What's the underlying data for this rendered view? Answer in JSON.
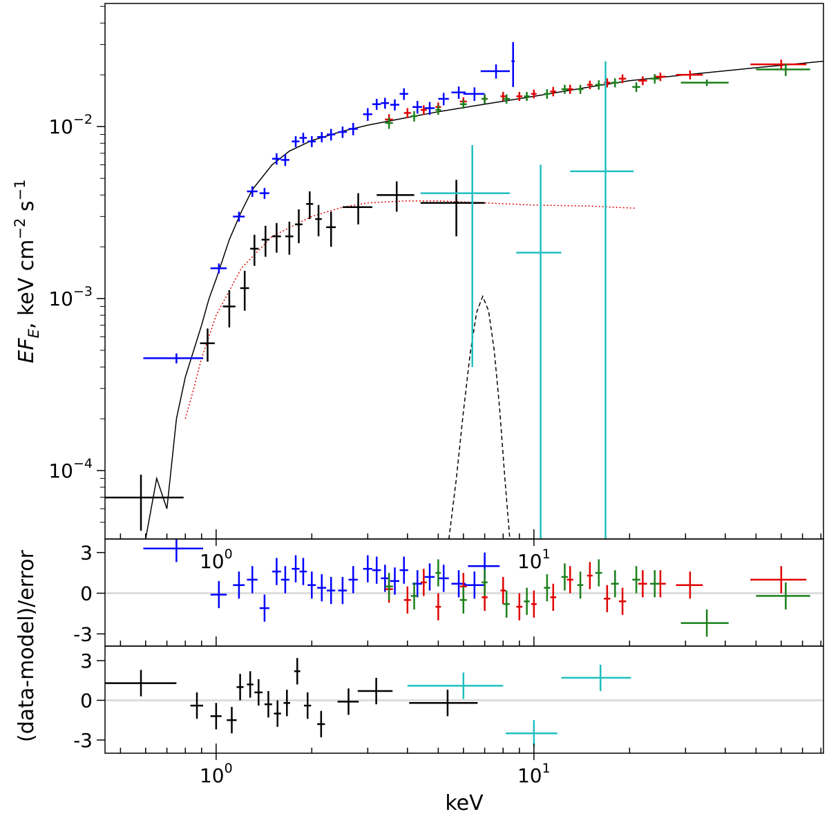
{
  "chart_data": [
    {
      "type": "errorbar",
      "xscale": "log",
      "yscale": "log",
      "xlim": [
        0.447,
        81.5
      ],
      "ylim": [
        4e-05,
        0.052
      ],
      "xticks": [
        {
          "value": 1,
          "label": "10",
          "exp": "0"
        },
        {
          "value": 10,
          "label": "10",
          "exp": "1"
        }
      ],
      "yticks": [
        {
          "value": 0.0001,
          "label": "10",
          "exp": "−4"
        },
        {
          "value": 0.001,
          "label": "10",
          "exp": "−3"
        },
        {
          "value": 0.01,
          "label": "10",
          "exp": "−2"
        }
      ],
      "ylabel": [
        "EF",
        "E",
        ", keV cm",
        "−2",
        " s",
        "−1"
      ],
      "models": [
        {
          "color": "#000000",
          "style": "solid",
          "x": [
            0.6,
            0.65,
            0.7,
            0.75,
            0.8,
            0.85,
            0.9,
            0.95,
            1.0,
            1.1,
            1.2,
            1.3,
            1.5,
            1.7,
            2,
            2.5,
            3,
            4,
            5,
            7,
            10,
            15,
            20,
            30,
            50,
            81.5
          ],
          "values": [
            4e-05,
            9e-05,
            6e-05,
            0.0002,
            0.00035,
            0.0005,
            0.0007,
            0.001,
            0.0013,
            0.0022,
            0.0032,
            0.0043,
            0.006,
            0.0072,
            0.0083,
            0.0094,
            0.0102,
            0.0113,
            0.0122,
            0.0135,
            0.015,
            0.017,
            0.0185,
            0.02,
            0.022,
            0.024
          ]
        },
        {
          "color": "#e00000",
          "style": "dotted",
          "x": [
            0.8,
            0.85,
            0.9,
            1.0,
            1.2,
            1.5,
            2,
            2.5,
            3,
            4,
            5,
            7,
            10,
            15,
            21
          ],
          "values": [
            0.0002,
            0.0003,
            0.00045,
            0.0008,
            0.0015,
            0.0023,
            0.003,
            0.0034,
            0.0036,
            0.0037,
            0.0037,
            0.0036,
            0.0035,
            0.00345,
            0.00335
          ]
        },
        {
          "color": "#000000",
          "style": "dashed",
          "x": [
            5.4,
            5.7,
            6.0,
            6.3,
            6.6,
            6.9,
            7.2,
            7.5,
            7.8,
            8.1,
            8.4
          ],
          "values": [
            4e-05,
            9e-05,
            0.00022,
            0.00048,
            0.00083,
            0.00103,
            0.00085,
            0.0005,
            0.00023,
            9e-05,
            4e-05
          ]
        }
      ],
      "series": [
        {
          "color": "#0000ff",
          "x": [
            0.75,
            1.02,
            1.18,
            1.3,
            1.42,
            1.55,
            1.65,
            1.78,
            1.88,
            2.0,
            2.15,
            2.3,
            2.5,
            2.7,
            3.0,
            3.2,
            3.4,
            3.65,
            3.9,
            4.3,
            4.7,
            5.2,
            5.8,
            6.5,
            7.6,
            8.6
          ],
          "xerr": [
            0.16,
            0.06,
            0.05,
            0.05,
            0.05,
            0.05,
            0.05,
            0.05,
            0.05,
            0.06,
            0.07,
            0.07,
            0.08,
            0.09,
            0.1,
            0.1,
            0.1,
            0.12,
            0.12,
            0.15,
            0.17,
            0.2,
            0.3,
            0.5,
            0.8,
            0.1
          ],
          "values": [
            0.00045,
            0.0015,
            0.003,
            0.0042,
            0.0041,
            0.0065,
            0.0064,
            0.0082,
            0.0086,
            0.0082,
            0.0087,
            0.009,
            0.0093,
            0.0097,
            0.0118,
            0.0135,
            0.0137,
            0.0134,
            0.0155,
            0.013,
            0.0128,
            0.0145,
            0.0158,
            0.0155,
            0.021,
            0.024
          ],
          "yerr": [
            3e-05,
            0.0001,
            0.0002,
            0.0003,
            0.0003,
            0.0005,
            0.0005,
            0.0006,
            0.0006,
            0.0006,
            0.0006,
            0.0007,
            0.0007,
            0.0008,
            0.001,
            0.001,
            0.001,
            0.001,
            0.0012,
            0.0011,
            0.0011,
            0.0012,
            0.0013,
            0.0014,
            0.002,
            0.007
          ]
        },
        {
          "color": "#e00000",
          "x": [
            3.5,
            4,
            4.5,
            5,
            6,
            7,
            8,
            9,
            10,
            11.5,
            13,
            15,
            17,
            19,
            22,
            25,
            31,
            60
          ],
          "xerr": [
            0.1,
            0.1,
            0.1,
            0.1,
            0.15,
            0.15,
            0.15,
            0.2,
            0.2,
            0.25,
            0.3,
            0.3,
            0.4,
            0.5,
            0.7,
            1,
            3,
            12
          ],
          "values": [
            0.011,
            0.012,
            0.0125,
            0.013,
            0.014,
            0.0145,
            0.015,
            0.015,
            0.0155,
            0.016,
            0.0165,
            0.0175,
            0.018,
            0.019,
            0.0185,
            0.0195,
            0.02,
            0.023
          ],
          "yerr": [
            0.0008,
            0.0008,
            0.0008,
            0.0008,
            0.0008,
            0.0008,
            0.0009,
            0.0009,
            0.0009,
            0.001,
            0.001,
            0.001,
            0.0011,
            0.0011,
            0.0011,
            0.0011,
            0.0012,
            0.0015
          ]
        },
        {
          "color": "#1a7f1a",
          "x": [
            3.5,
            4.2,
            5,
            6,
            7,
            8.2,
            9.5,
            11,
            12.5,
            14,
            16,
            18,
            21,
            24,
            35,
            62
          ],
          "xerr": [
            0.1,
            0.1,
            0.1,
            0.15,
            0.15,
            0.2,
            0.2,
            0.25,
            0.3,
            0.3,
            0.4,
            0.5,
            0.6,
            0.8,
            6,
            12
          ],
          "values": [
            0.0105,
            0.0115,
            0.0125,
            0.0135,
            0.0145,
            0.0145,
            0.015,
            0.0155,
            0.0165,
            0.0165,
            0.0175,
            0.018,
            0.017,
            0.019,
            0.018,
            0.0215
          ],
          "yerr": [
            0.0008,
            0.0008,
            0.0008,
            0.0008,
            0.0009,
            0.0009,
            0.0009,
            0.001,
            0.001,
            0.001,
            0.0011,
            0.0011,
            0.0011,
            0.0012,
            0.0008,
            0.0018
          ]
        },
        {
          "color": "#000000",
          "x": [
            0.58,
            0.94,
            1.1,
            1.23,
            1.32,
            1.43,
            1.55,
            1.7,
            1.82,
            1.97,
            2.1,
            2.3,
            2.8,
            3.7,
            5.7
          ],
          "xerr": [
            0.21,
            0.05,
            0.05,
            0.04,
            0.04,
            0.04,
            0.05,
            0.05,
            0.05,
            0.05,
            0.05,
            0.08,
            0.3,
            0.5,
            1.3
          ],
          "values": [
            6.97e-05,
            0.00055,
            0.0009,
            0.00115,
            0.00195,
            0.0022,
            0.0023,
            0.0023,
            0.0027,
            0.00355,
            0.0029,
            0.0026,
            0.0034,
            0.004,
            0.0036
          ],
          "yerr": [
            2.5e-05,
            0.00012,
            0.00022,
            0.0003,
            0.0004,
            0.00045,
            0.00045,
            0.0005,
            0.0006,
            0.00065,
            0.0006,
            0.0006,
            0.0007,
            0.0008,
            0.0013
          ]
        },
        {
          "color": "#1fbfbf",
          "x": [
            6.4,
            10.5,
            16.8
          ],
          "xerr": [
            2.0,
            1.7,
            3.8
          ],
          "values": [
            0.0041,
            0.00185,
            0.0055
          ],
          "yerr": [
            0.0037,
            0.00415,
            0.0185
          ]
        }
      ]
    },
    {
      "type": "errorbar",
      "xscale": "log",
      "yscale": "linear",
      "xlim": [
        0.447,
        81.5
      ],
      "ylim": [
        -3.9,
        4.0
      ],
      "yticks": [
        -3,
        0,
        3
      ],
      "ylabel": "(data-model)/error",
      "series": [
        {
          "color": "#0000ff",
          "x": [
            0.75,
            1.02,
            1.18,
            1.3,
            1.42,
            1.55,
            1.65,
            1.78,
            1.88,
            2.0,
            2.15,
            2.3,
            2.5,
            2.7,
            3.0,
            3.2,
            3.4,
            3.65,
            3.9,
            4.3,
            4.7,
            5.2,
            5.8,
            6.5,
            7.0
          ],
          "xerr": [
            0.16,
            0.06,
            0.05,
            0.05,
            0.05,
            0.05,
            0.05,
            0.05,
            0.05,
            0.06,
            0.07,
            0.07,
            0.08,
            0.09,
            0.1,
            0.1,
            0.1,
            0.12,
            0.12,
            0.15,
            0.17,
            0.2,
            0.3,
            0.5,
            0.8
          ],
          "values": [
            3.3,
            -0.1,
            0.6,
            1.0,
            -1.1,
            1.6,
            1.0,
            1.8,
            1.6,
            0.6,
            0.4,
            0.2,
            0.2,
            1.0,
            1.8,
            1.7,
            1.1,
            0.9,
            1.7,
            0.7,
            1.2,
            1.1,
            0.7,
            0.6,
            2.0
          ],
          "yerr": [
            1,
            1,
            1,
            1,
            1,
            1,
            1,
            1,
            1,
            1,
            1,
            1,
            1,
            1,
            1,
            1,
            1,
            1,
            1,
            1,
            1,
            1,
            1,
            1,
            1
          ]
        },
        {
          "color": "#e00000",
          "x": [
            3.5,
            4,
            4.5,
            5,
            6,
            7,
            8,
            9,
            10,
            11.5,
            13,
            15,
            17,
            19,
            22,
            25,
            31,
            60
          ],
          "xerr": [
            0.1,
            0.1,
            0.1,
            0.1,
            0.15,
            0.15,
            0.15,
            0.2,
            0.2,
            0.25,
            0.3,
            0.3,
            0.4,
            0.5,
            0.7,
            1,
            3,
            12
          ],
          "values": [
            0.3,
            -0.5,
            0.8,
            -1.0,
            0.5,
            -0.3,
            0.2,
            -1.0,
            -0.8,
            -0.3,
            1.0,
            1.3,
            -0.4,
            -0.6,
            0.7,
            0.7,
            0.6,
            1.0
          ],
          "yerr": [
            1,
            1,
            1,
            1,
            1,
            1,
            1,
            1,
            1,
            1,
            1,
            1,
            1,
            1,
            1,
            1,
            1,
            1
          ]
        },
        {
          "color": "#1a7f1a",
          "x": [
            3.5,
            4.2,
            5,
            6,
            7,
            8.2,
            9.5,
            11,
            12.5,
            14,
            16,
            18,
            21,
            24,
            35,
            62
          ],
          "xerr": [
            0.1,
            0.1,
            0.1,
            0.15,
            0.15,
            0.2,
            0.2,
            0.25,
            0.3,
            0.3,
            0.4,
            0.5,
            0.6,
            0.8,
            6,
            12
          ],
          "values": [
            0.5,
            -0.2,
            1.5,
            -0.5,
            0.8,
            -0.8,
            -0.6,
            0.4,
            1.2,
            0.6,
            1.5,
            0.7,
            1.0,
            0.7,
            -2.2,
            -0.2
          ],
          "yerr": [
            1,
            1,
            1,
            1,
            1,
            1,
            1,
            1,
            1,
            1,
            1,
            1,
            1,
            1,
            1,
            1
          ]
        }
      ]
    },
    {
      "type": "errorbar",
      "xscale": "log",
      "yscale": "linear",
      "xlim": [
        0.447,
        81.5
      ],
      "ylim": [
        -4.0,
        4.1
      ],
      "yticks": [
        -3,
        0,
        3
      ],
      "xticks": [
        {
          "value": 1,
          "label": "10",
          "exp": "0"
        },
        {
          "value": 10,
          "label": "10",
          "exp": "1"
        }
      ],
      "xlabel": "keV",
      "series": [
        {
          "color": "#000000",
          "x": [
            0.58,
            0.87,
            1.0,
            1.12,
            1.19,
            1.28,
            1.36,
            1.46,
            1.56,
            1.67,
            1.8,
            1.94,
            2.14,
            2.61,
            3.19,
            5.35
          ],
          "xerr": [
            0.17,
            0.04,
            0.04,
            0.04,
            0.03,
            0.03,
            0.04,
            0.04,
            0.04,
            0.04,
            0.04,
            0.05,
            0.06,
            0.2,
            0.4,
            1.3
          ],
          "values": [
            1.3,
            -0.4,
            -1.2,
            -1.5,
            1.0,
            1.2,
            0.6,
            -0.3,
            -1.0,
            -0.2,
            2.2,
            -0.4,
            -1.8,
            -0.1,
            0.7,
            -0.2
          ],
          "yerr": [
            1,
            1,
            1,
            1,
            1,
            1,
            1,
            1,
            1,
            1,
            1,
            1,
            1,
            1,
            1,
            1
          ]
        },
        {
          "color": "#1fbfbf",
          "x": [
            6.0,
            10.0,
            16.2
          ],
          "xerr": [
            2.0,
            1.85,
            4.0
          ],
          "values": [
            1.1,
            -2.5,
            1.7
          ],
          "yerr": [
            1,
            1,
            1
          ]
        }
      ]
    }
  ]
}
